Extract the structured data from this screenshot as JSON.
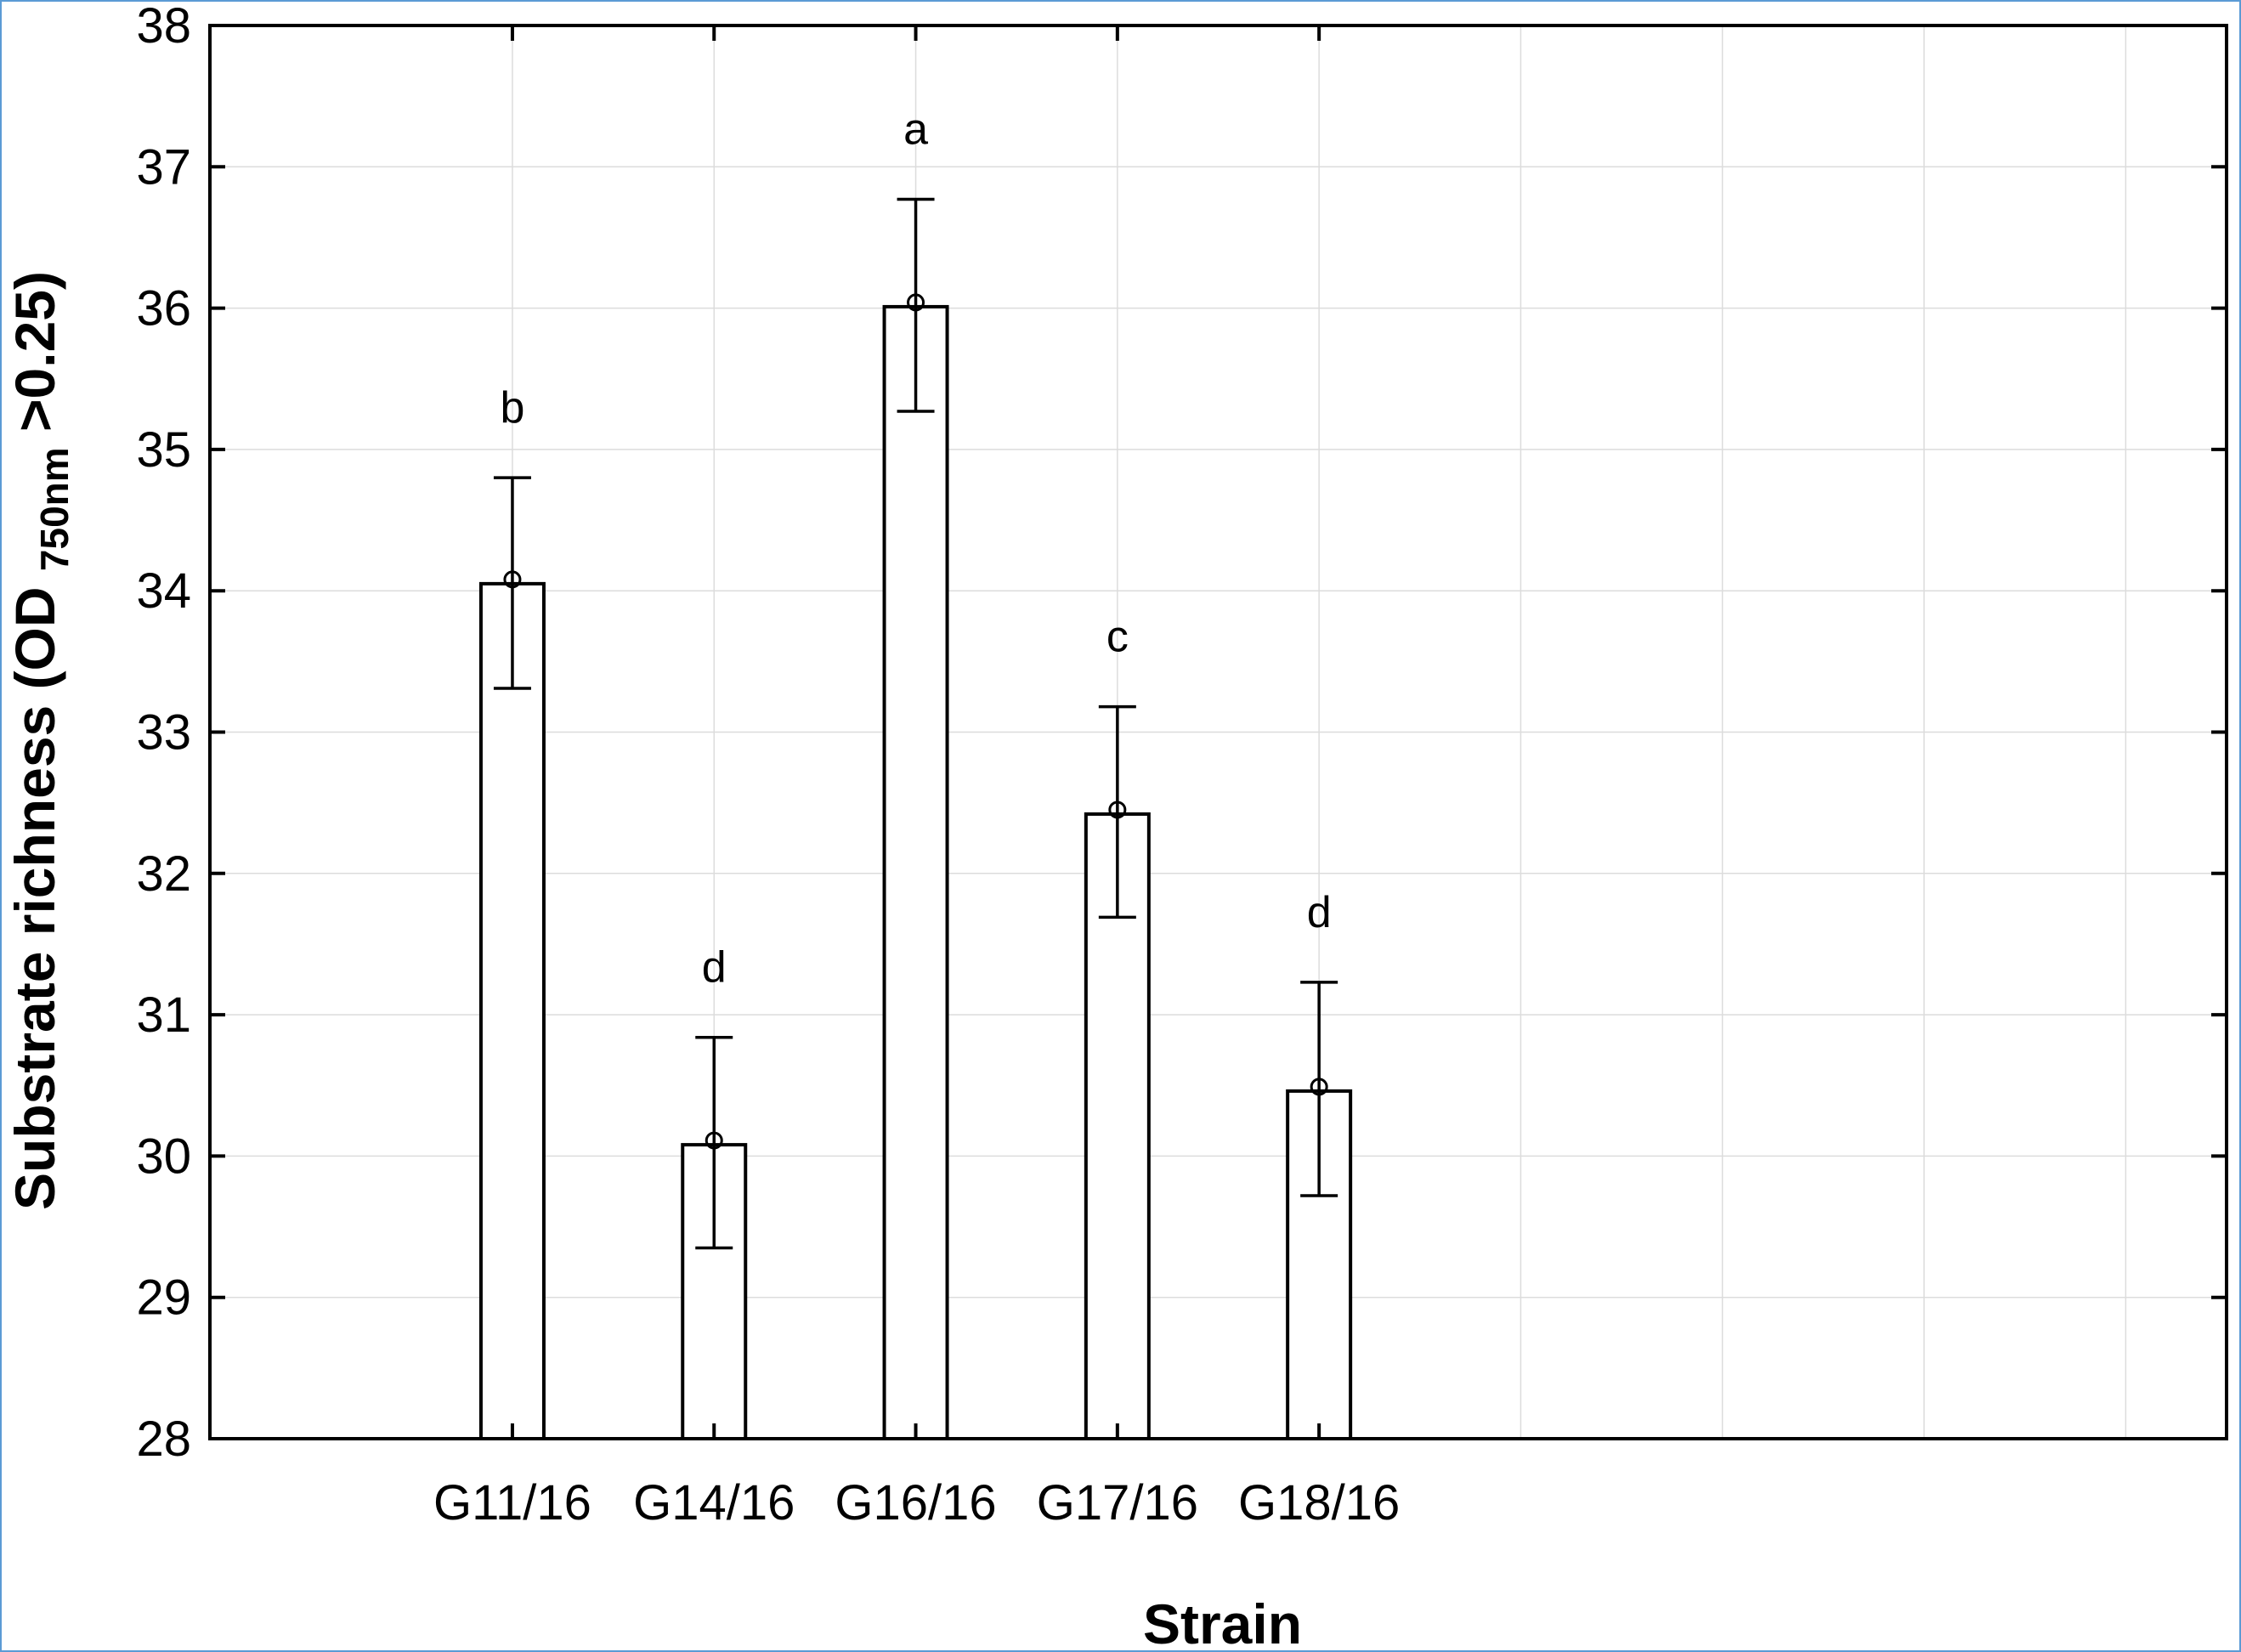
{
  "chart_data": {
    "type": "bar",
    "title": "",
    "xlabel": "Strain",
    "ylabel": {
      "main": "Substrate richness (OD ",
      "subscript": "750nm",
      "suffix": " >0.25)"
    },
    "ylim": [
      28,
      38
    ],
    "yticks": [
      "28",
      "29",
      "30",
      "31",
      "32",
      "33",
      "34",
      "35",
      "36",
      "37",
      "38"
    ],
    "grid": true,
    "categories": [
      "G11/16",
      "G14/16",
      "G16/16",
      "G17/16",
      "G18/16"
    ],
    "values": [
      34.05,
      30.08,
      36.01,
      32.42,
      30.46
    ],
    "error_low": [
      33.31,
      29.35,
      35.27,
      31.69,
      29.72
    ],
    "error_high": [
      34.8,
      30.84,
      36.77,
      33.18,
      31.23
    ],
    "annotations": [
      "b",
      "d",
      "a",
      "c",
      "d"
    ]
  }
}
